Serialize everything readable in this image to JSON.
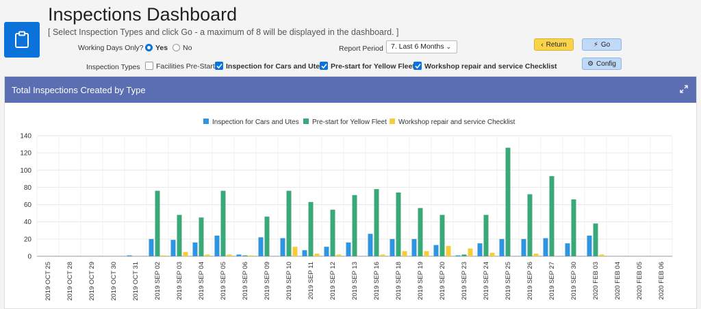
{
  "header": {
    "title": "Inspections Dashboard",
    "subtitle": "[ Select Inspection Types and click Go - a maximum of 8 will be displayed in the dashboard. ]"
  },
  "filters": {
    "working_days_label": "Working Days Only?",
    "yes_label": "Yes",
    "no_label": "No",
    "report_period_label": "Report Period",
    "report_period_value": "7. Last 6 Months",
    "inspection_types_label": "Inspection Types",
    "types": [
      {
        "label": "Facilities Pre-Start",
        "checked": false
      },
      {
        "label": "Inspection for Cars and Utes",
        "checked": true
      },
      {
        "label": "Pre-start for Yellow Fleet",
        "checked": true
      },
      {
        "label": "Workshop repair and service Checklist",
        "checked": true
      }
    ]
  },
  "buttons": {
    "return": "Return",
    "go": "Go",
    "config": "Config"
  },
  "panel": {
    "title": "Total Inspections Created by Type"
  },
  "colors": {
    "brand": "#0a72d8",
    "panel_header": "#5b6eb2",
    "series_blue": "#2f95de",
    "series_green": "#3aa97a",
    "series_yellow": "#f6cc3c"
  },
  "chart_data": {
    "type": "bar",
    "categories": [
      "2019 OCT 25",
      "2019 OCT 28",
      "2019 OCT 29",
      "2019 OCT 30",
      "2019 OCT 31",
      "2019 SEP 02",
      "2019 SEP 03",
      "2019 SEP 04",
      "2019 SEP 05",
      "2019 SEP 06",
      "2019 SEP 09",
      "2019 SEP 10",
      "2019 SEP 11",
      "2019 SEP 12",
      "2019 SEP 13",
      "2019 SEP 16",
      "2019 SEP 18",
      "2019 SEP 19",
      "2019 SEP 20",
      "2019 SEP 23",
      "2019 SEP 24",
      "2019 SEP 25",
      "2019 SEP 26",
      "2019 SEP 27",
      "2019 SEP 30",
      "2020 FEB 03",
      "2020 FEB 04",
      "2020 FEB 05",
      "2020 FEB 06"
    ],
    "series": [
      {
        "name": "Inspection for Cars and Utes",
        "color": "#2f95de",
        "values": [
          0,
          0,
          0,
          0,
          1,
          20,
          19,
          16,
          24,
          2,
          22,
          21,
          7,
          11,
          16,
          26,
          20,
          20,
          13,
          1,
          15,
          20,
          20,
          21,
          15,
          24,
          0,
          0,
          0
        ]
      },
      {
        "name": "Pre-start for Yellow Fleet",
        "color": "#3aa97a",
        "values": [
          0,
          0,
          0,
          0,
          0,
          76,
          48,
          45,
          76,
          1,
          46,
          76,
          63,
          54,
          71,
          78,
          74,
          56,
          48,
          2,
          48,
          126,
          72,
          93,
          66,
          38,
          0,
          0,
          0
        ]
      },
      {
        "name": "Workshop repair and service Checklist",
        "color": "#f6cc3c",
        "values": [
          0,
          0,
          0,
          0,
          0,
          1,
          5,
          2,
          2,
          1,
          0,
          11,
          3,
          2,
          0,
          2,
          6,
          6,
          12,
          9,
          4,
          0,
          3,
          0,
          0,
          2,
          0,
          0,
          0
        ]
      }
    ],
    "yticks": [
      0,
      20,
      40,
      60,
      80,
      100,
      120,
      140
    ],
    "ylim": [
      0,
      140
    ],
    "grid": true,
    "legend": "top-center"
  }
}
